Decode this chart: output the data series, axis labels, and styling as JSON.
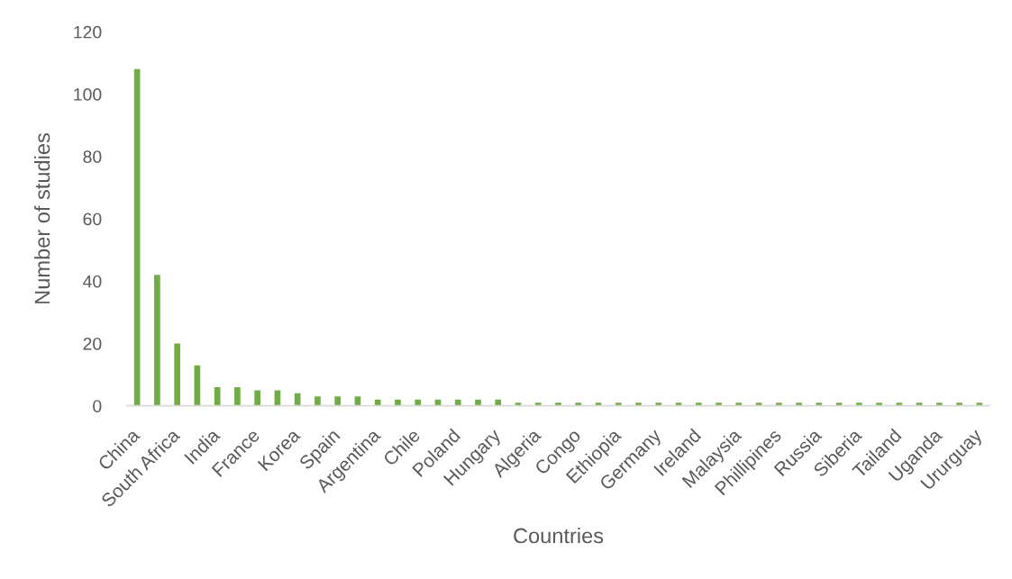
{
  "chart_data": {
    "type": "bar",
    "xlabel": "Countries",
    "ylabel": "Number of studies",
    "categories": [
      "China",
      null,
      "South Africa",
      null,
      "India",
      null,
      "France",
      null,
      "Korea",
      null,
      "Spain",
      null,
      "Argentina",
      null,
      "Chile",
      null,
      "Poland",
      null,
      "Hungary",
      null,
      "Algeria",
      null,
      "Congo",
      null,
      "Ethiopia",
      null,
      "Germany",
      null,
      "Ireland",
      null,
      "Malaysia",
      null,
      "Phillipines",
      null,
      "Russia",
      null,
      "Siberia",
      null,
      "Tailand",
      null,
      "Uganda",
      null,
      "Ururguay"
    ],
    "values": [
      108,
      42,
      20,
      13,
      6,
      6,
      5,
      5,
      4,
      3,
      3,
      3,
      2,
      2,
      2,
      2,
      2,
      2,
      2,
      1,
      1,
      1,
      1,
      1,
      1,
      1,
      1,
      1,
      1,
      1,
      1,
      1,
      1,
      1,
      1,
      1,
      1,
      1,
      1,
      1,
      1,
      1,
      1
    ],
    "color": "#70ad47",
    "ylim": [
      0,
      120
    ],
    "yticks": [
      0,
      20,
      40,
      60,
      80,
      100,
      120
    ]
  }
}
